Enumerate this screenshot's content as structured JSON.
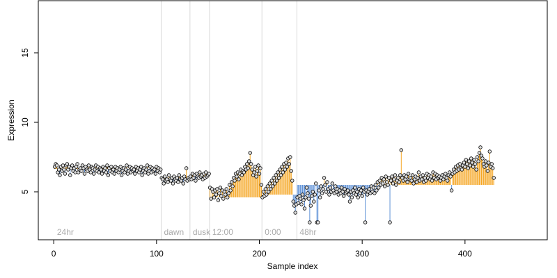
{
  "chart_data": {
    "type": "scatter",
    "title": "",
    "xlabel": "Sample index",
    "ylabel": "Expression",
    "xlim": [
      -15,
      480
    ],
    "ylim": [
      1.55,
      18.75
    ],
    "xticks": [
      0,
      100,
      200,
      300,
      400
    ],
    "yticks": [
      5,
      10,
      15
    ],
    "grid": false,
    "baseline_note": "vertical segments are drawn from each point to its condition-group mean",
    "groups": [
      {
        "label": "24hr",
        "start": 1,
        "end": 104,
        "mean": 6.65
      },
      {
        "label": "dawn",
        "start": 105,
        "end": 132,
        "mean": 5.95
      },
      {
        "label": "dusk",
        "start": 133,
        "end": 151,
        "mean": 6.1
      },
      {
        "label": "12:00",
        "start": 152,
        "end": 202,
        "mean": 4.6
      },
      {
        "label": "0:00",
        "start": 203,
        "end": 236,
        "mean": 4.8
      },
      {
        "label": "48hr",
        "start": 237,
        "end": 462,
        "mean": 5.5
      }
    ],
    "series_colors": {
      "above_mean": "#f5a623",
      "below_mean": "#5b8fd6",
      "point_face": "#dddddd",
      "point_edge": "#000000"
    },
    "values": [
      6.8,
      7.0,
      6.9,
      6.4,
      6.6,
      6.2,
      6.8,
      6.5,
      6.9,
      6.6,
      6.3,
      6.9,
      7.0,
      6.6,
      6.8,
      6.2,
      6.7,
      6.9,
      6.5,
      6.7,
      6.4,
      6.8,
      7.0,
      6.4,
      6.6,
      6.7,
      6.5,
      6.9,
      6.7,
      6.3,
      6.8,
      6.6,
      6.5,
      6.9,
      6.6,
      6.4,
      6.8,
      6.7,
      6.3,
      6.6,
      6.9,
      6.5,
      6.8,
      6.4,
      6.7,
      6.6,
      6.3,
      6.8,
      6.5,
      6.7,
      6.4,
      6.9,
      6.2,
      6.7,
      6.5,
      6.8,
      6.4,
      6.6,
      6.3,
      6.8,
      6.5,
      6.7,
      6.4,
      6.6,
      6.8,
      6.2,
      6.5,
      6.7,
      6.4,
      6.6,
      6.9,
      6.3,
      6.5,
      6.8,
      6.4,
      6.7,
      6.5,
      6.6,
      6.3,
      6.8,
      6.5,
      6.7,
      6.4,
      6.6,
      6.8,
      6.2,
      6.5,
      6.7,
      6.4,
      6.6,
      6.9,
      6.3,
      6.5,
      6.8,
      6.4,
      6.7,
      6.5,
      6.6,
      6.3,
      6.8,
      6.5,
      6.7,
      6.4,
      6.6,
      6.0,
      5.9,
      5.6,
      6.1,
      5.8,
      5.9,
      5.7,
      6.2,
      5.9,
      5.8,
      6.0,
      5.6,
      6.1,
      5.9,
      5.8,
      6.0,
      5.7,
      6.2,
      5.9,
      5.8,
      6.0,
      5.6,
      6.1,
      5.9,
      6.7,
      5.8,
      6.0,
      5.9,
      6.1,
      5.9,
      6.3,
      6.0,
      6.2,
      5.8,
      6.3,
      6.1,
      6.0,
      6.4,
      6.1,
      6.2,
      5.9,
      6.3,
      6.0,
      6.4,
      6.1,
      6.2,
      6.3,
      5.3,
      4.5,
      5.2,
      5.0,
      4.6,
      5.1,
      4.8,
      5.2,
      4.4,
      4.9,
      5.3,
      4.7,
      5.1,
      4.5,
      5.0,
      4.8,
      5.2,
      4.6,
      4.9,
      5.5,
      5.1,
      5.7,
      5.4,
      6.0,
      5.8,
      6.3,
      6.1,
      6.4,
      5.9,
      6.3,
      6.6,
      6.2,
      6.5,
      6.4,
      6.8,
      6.6,
      7.0,
      6.7,
      7.2,
      7.8,
      7.0,
      6.6,
      6.2,
      6.4,
      6.8,
      6.1,
      6.5,
      6.9,
      6.3,
      6.7,
      5.5,
      4.6,
      5.0,
      4.7,
      5.2,
      4.8,
      5.4,
      5.0,
      5.6,
      5.2,
      5.8,
      5.4,
      6.0,
      5.6,
      6.2,
      5.8,
      6.4,
      6.0,
      6.6,
      6.2,
      6.8,
      6.4,
      7.0,
      6.6,
      7.1,
      6.8,
      7.4,
      7.0,
      7.5,
      6.5,
      5.8,
      4.3,
      4.0,
      3.5,
      4.1,
      4.6,
      4.2,
      4.7,
      4.5,
      4.1,
      4.8,
      4.4,
      3.8,
      4.6,
      5.3,
      4.9,
      4.5,
      2.8,
      4.0,
      4.7,
      5.0,
      4.3,
      4.8,
      5.6,
      2.8,
      2.8,
      5.1,
      4.6,
      5.4,
      4.9,
      5.2,
      6.0,
      5.5,
      5.0,
      5.7,
      5.2,
      4.8,
      5.3,
      5.0,
      5.6,
      5.1,
      4.9,
      5.4,
      5.0,
      5.2,
      4.8,
      5.1,
      4.9,
      5.3,
      5.0,
      4.7,
      5.2,
      4.9,
      5.0,
      5.1,
      4.8,
      4.3,
      5.0,
      4.6,
      5.1,
      4.9,
      5.3,
      4.8,
      5.0,
      4.6,
      5.2,
      4.9,
      5.1,
      4.7,
      5.3,
      5.0,
      2.8,
      5.1,
      4.8,
      5.0,
      5.2,
      4.9,
      5.4,
      5.0,
      5.3,
      4.9,
      5.5,
      5.1,
      5.7,
      5.3,
      5.8,
      5.5,
      6.0,
      5.6,
      5.9,
      5.4,
      6.1,
      5.7,
      5.5,
      6.0,
      2.8,
      5.8,
      6.1,
      5.6,
      5.9,
      6.2,
      5.5,
      5.8,
      6.0,
      5.7,
      6.2,
      8.0,
      6.0,
      5.8,
      6.2,
      5.9,
      6.1,
      5.7,
      6.3,
      5.9,
      6.0,
      5.8,
      6.2,
      5.6,
      5.9,
      6.1,
      5.7,
      6.0,
      6.4,
      5.8,
      6.1,
      5.9,
      6.2,
      5.7,
      6.0,
      5.8,
      6.3,
      6.0,
      6.2,
      5.9,
      6.1,
      5.8,
      6.4,
      6.0,
      6.3,
      5.9,
      6.2,
      6.0,
      6.1,
      5.8,
      6.0,
      6.2,
      5.9,
      6.1,
      6.3,
      6.0,
      5.8,
      6.2,
      6.4,
      6.1,
      5.1,
      6.3,
      6.6,
      6.4,
      6.8,
      6.5,
      6.9,
      6.6,
      7.0,
      6.7,
      6.6,
      6.9,
      7.1,
      6.8,
      7.3,
      7.0,
      6.7,
      7.2,
      6.9,
      7.4,
      7.1,
      6.8,
      7.3,
      7.0,
      6.6,
      7.5,
      7.2,
      7.8,
      8.2,
      7.6,
      7.4,
      7.0,
      6.8,
      7.2,
      6.9,
      6.5,
      7.1,
      7.9,
      6.8,
      7.0,
      6.7,
      6.0
    ]
  },
  "axes": {
    "xlabel": "Sample index",
    "ylabel": "Expression"
  }
}
